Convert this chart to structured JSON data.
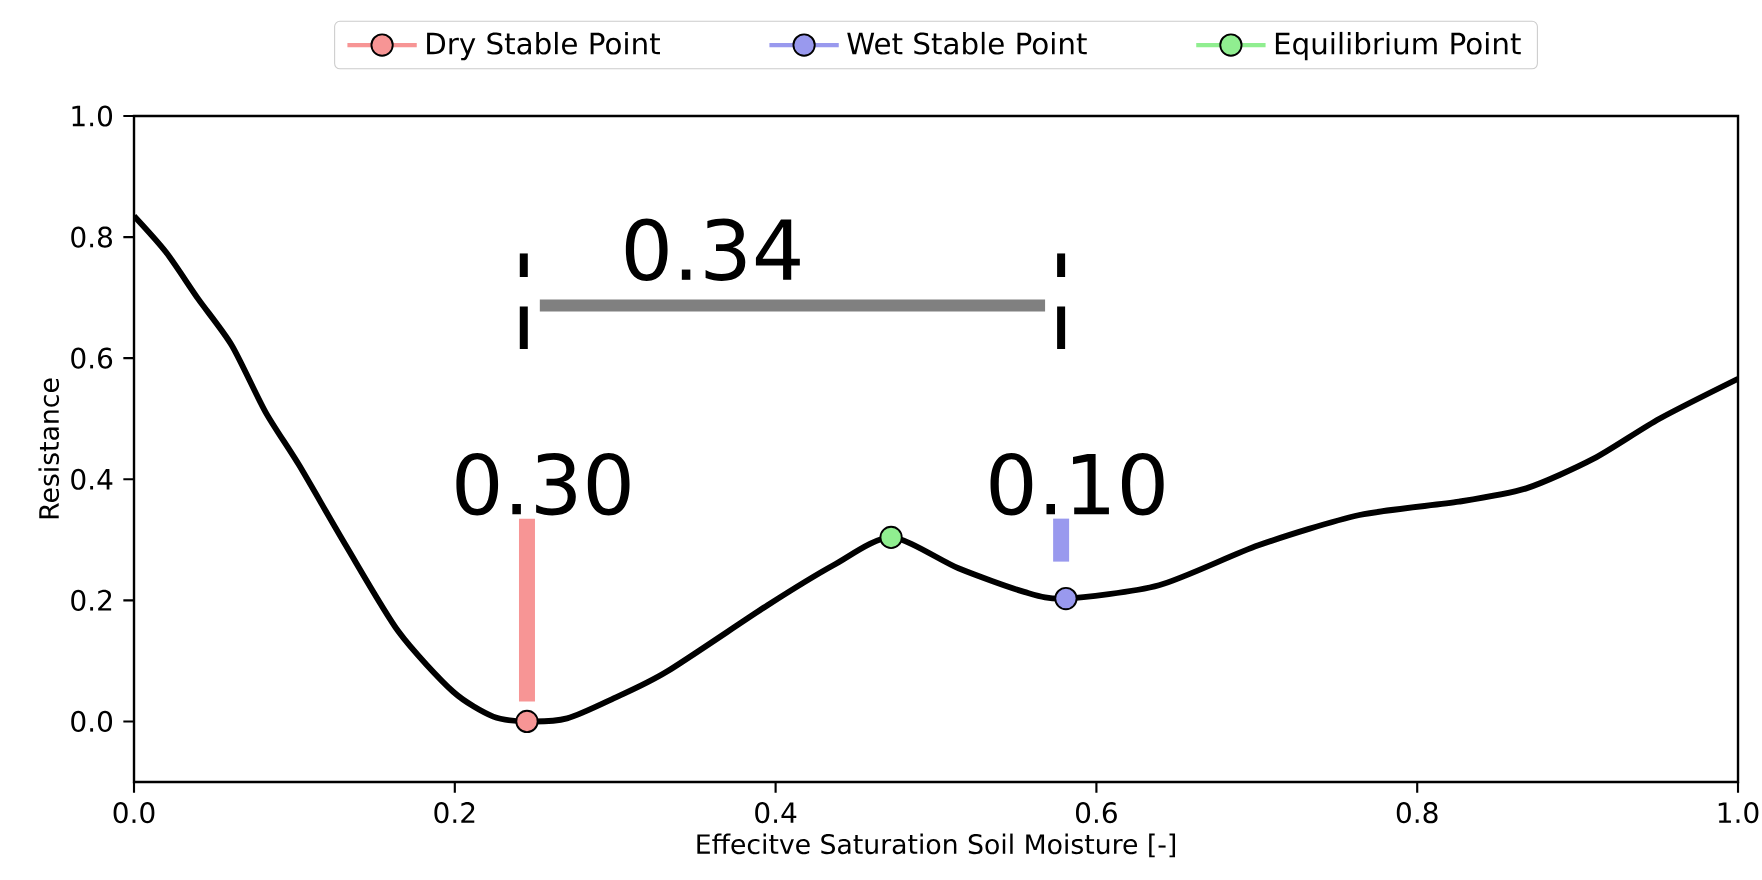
{
  "chart_data": {
    "type": "line",
    "xlabel": "Effecitve Saturation Soil Moisture [-]",
    "ylabel": "Resistance",
    "xlim": [
      0,
      1
    ],
    "ylim": [
      -0.1,
      1.0
    ],
    "xticks": [
      {
        "value": 0,
        "label": "0.0"
      },
      {
        "value": 0.2,
        "label": "0.2"
      },
      {
        "value": 0.4,
        "label": "0.4"
      },
      {
        "value": 0.6,
        "label": "0.6"
      },
      {
        "value": 0.8,
        "label": "0.8"
      },
      {
        "value": 1.0,
        "label": "1.0"
      }
    ],
    "yticks": [
      {
        "value": 0,
        "label": "0.0"
      },
      {
        "value": 0.2,
        "label": "0.2"
      },
      {
        "value": 0.4,
        "label": "0.4"
      },
      {
        "value": 0.6,
        "label": "0.6"
      },
      {
        "value": 0.8,
        "label": "0.8"
      },
      {
        "value": 1.0,
        "label": "1.0"
      }
    ],
    "grid": false,
    "legend": "top",
    "series": [
      {
        "color": "#000000",
        "x": [
          0,
          0.02,
          0.04,
          0.061,
          0.082,
          0.103,
          0.132,
          0.165,
          0.199,
          0.224,
          0.245,
          0.27,
          0.299,
          0.332,
          0.395,
          0.436,
          0.472,
          0.514,
          0.555,
          0.58,
          0.639,
          0.701,
          0.764,
          0.826,
          0.868,
          0.91,
          0.951,
          1.0
        ],
        "values": [
          0.835,
          0.775,
          0.698,
          0.621,
          0.511,
          0.423,
          0.291,
          0.148,
          0.049,
          0.008,
          0,
          0.005,
          0.038,
          0.082,
          0.192,
          0.258,
          0.304,
          0.253,
          0.214,
          0.203,
          0.225,
          0.291,
          0.341,
          0.363,
          0.385,
          0.434,
          0.5,
          0.566
        ]
      },
      {
        "color": "#f79595",
        "x": [
          0.245,
          0.245
        ],
        "values": [
          0.033,
          0.335
        ]
      },
      {
        "color": "#9999ee",
        "x": [
          0.578,
          0.578
        ],
        "values": [
          0.264,
          0.335
        ]
      },
      {
        "color": "#808080",
        "x": [
          0.253,
          0.568
        ],
        "values": [
          0.687,
          0.687
        ]
      },
      {
        "color": "#000000",
        "line_style": "dashed",
        "x": [
          0.243,
          0.243
        ],
        "values": [
          0.615,
          0.773
        ]
      },
      {
        "color": "#000000",
        "line_style": "dashed",
        "x": [
          0.578,
          0.578
        ],
        "values": [
          0.615,
          0.773
        ]
      },
      {
        "type": "scatter",
        "marker": "circle",
        "name": "Dry Stable Point",
        "color": "#f79595",
        "x": [
          0.245
        ],
        "values": [
          0.0
        ]
      },
      {
        "type": "scatter",
        "marker": "circle",
        "name": "Wet Stable Point",
        "color": "#9999ee",
        "x": [
          0.581
        ],
        "values": [
          0.203
        ]
      },
      {
        "type": "scatter",
        "marker": "circle",
        "name": "Equilibrium Point",
        "color": "#90ee90",
        "x": [
          0.472
        ],
        "values": [
          0.304
        ]
      }
    ],
    "annotations": [
      "0.30",
      "0.10",
      "0.34"
    ]
  }
}
